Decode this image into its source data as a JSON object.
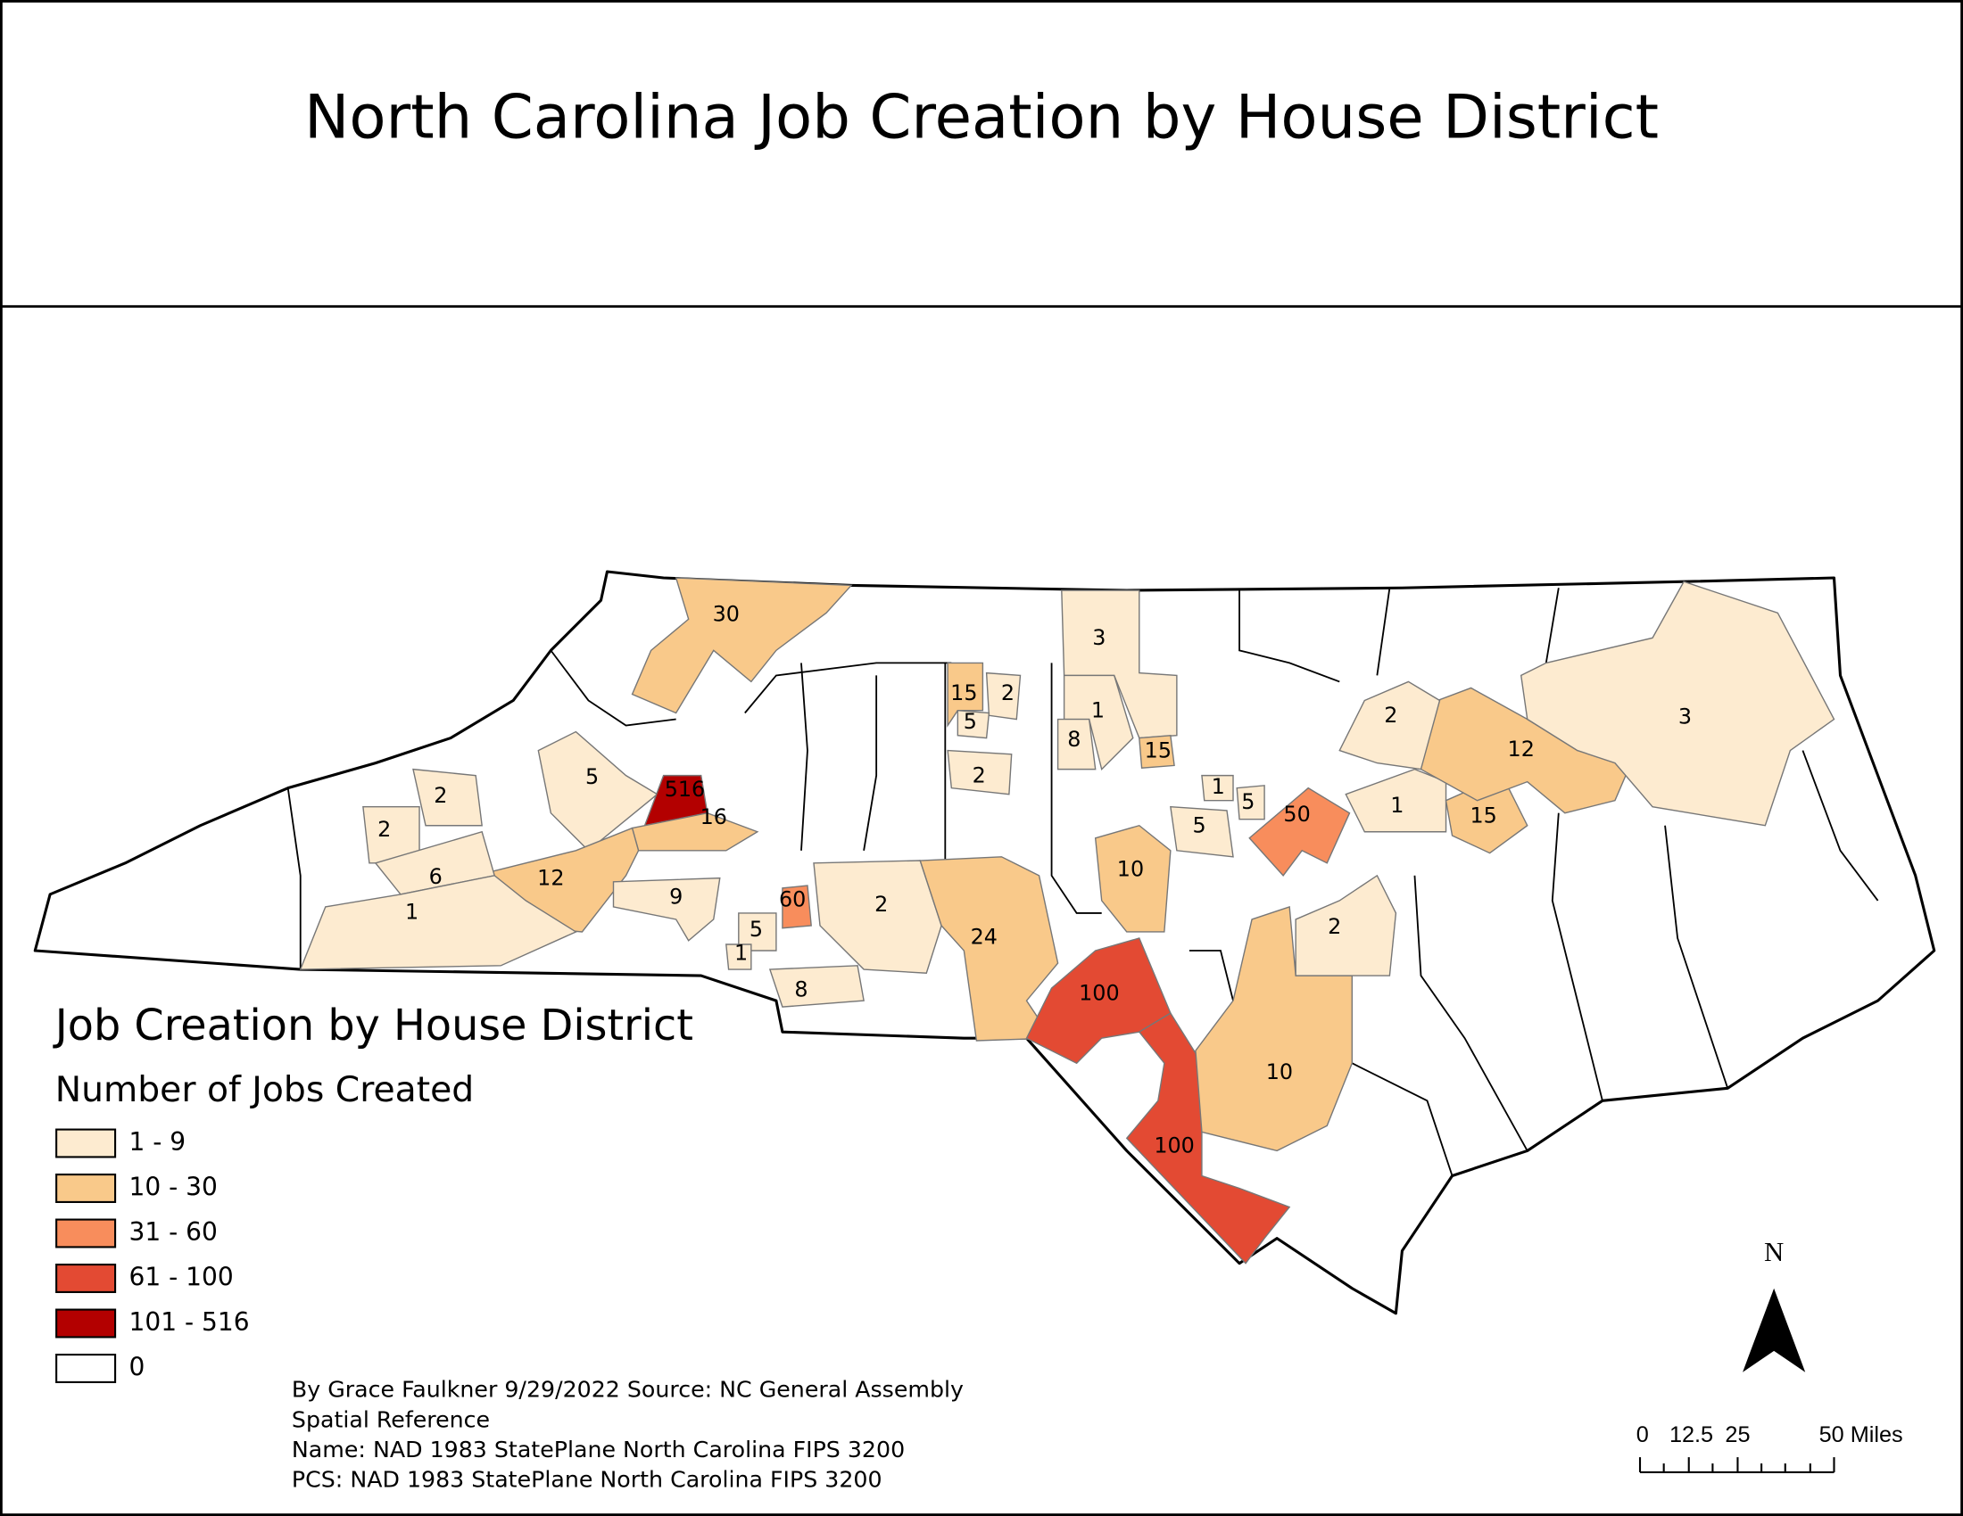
{
  "title": "North Carolina Job Creation by House District",
  "legend": {
    "title": "Job Creation by House District",
    "subtitle": "Number of Jobs Created",
    "classes": [
      {
        "label": "1 - 9",
        "color": "#fdebd0"
      },
      {
        "label": "10 - 30",
        "color": "#f9c98a"
      },
      {
        "label": "31 - 60",
        "color": "#f88d5c"
      },
      {
        "label": "61 - 100",
        "color": "#e34a33"
      },
      {
        "label": "101 - 516",
        "color": "#b30000"
      },
      {
        "label": "0",
        "color": "#ffffff"
      }
    ]
  },
  "districts": [
    {
      "label": "30",
      "color": "#f9c98a"
    },
    {
      "label": "3",
      "color": "#fdebd0"
    },
    {
      "label": "1",
      "color": "#fdebd0"
    },
    {
      "label": "8",
      "color": "#fdebd0"
    },
    {
      "label": "15",
      "color": "#f9c98a"
    },
    {
      "label": "15",
      "color": "#f9c98a"
    },
    {
      "label": "2",
      "color": "#fdebd0"
    },
    {
      "label": "5",
      "color": "#fdebd0"
    },
    {
      "label": "2",
      "color": "#fdebd0"
    },
    {
      "label": "5",
      "color": "#fdebd0"
    },
    {
      "label": "516",
      "color": "#b30000"
    },
    {
      "label": "16",
      "color": "#f9c98a"
    },
    {
      "label": "12",
      "color": "#f9c98a"
    },
    {
      "label": "2",
      "color": "#fdebd0"
    },
    {
      "label": "2",
      "color": "#fdebd0"
    },
    {
      "label": "6",
      "color": "#fdebd0"
    },
    {
      "label": "1",
      "color": "#fdebd0"
    },
    {
      "label": "9",
      "color": "#fdebd0"
    },
    {
      "label": "60",
      "color": "#f88d5c"
    },
    {
      "label": "5",
      "color": "#fdebd0"
    },
    {
      "label": "1",
      "color": "#fdebd0"
    },
    {
      "label": "8",
      "color": "#fdebd0"
    },
    {
      "label": "2",
      "color": "#fdebd0"
    },
    {
      "label": "24",
      "color": "#f9c98a"
    },
    {
      "label": "10",
      "color": "#f9c98a"
    },
    {
      "label": "100",
      "color": "#e34a33"
    },
    {
      "label": "100",
      "color": "#e34a33"
    },
    {
      "label": "10",
      "color": "#f9c98a"
    },
    {
      "label": "2",
      "color": "#fdebd0"
    },
    {
      "label": "50",
      "color": "#f88d5c"
    },
    {
      "label": "5",
      "color": "#fdebd0"
    },
    {
      "label": "1",
      "color": "#fdebd0"
    },
    {
      "label": "5",
      "color": "#fdebd0"
    },
    {
      "label": "1",
      "color": "#fdebd0"
    },
    {
      "label": "15",
      "color": "#f9c98a"
    },
    {
      "label": "12",
      "color": "#f9c98a"
    },
    {
      "label": "2",
      "color": "#fdebd0"
    },
    {
      "label": "3",
      "color": "#fdebd0"
    }
  ],
  "credits": [
    "By Grace Faulkner  9/29/2022 Source: NC General Assembly",
    "Spatial Reference",
    "Name: NAD 1983 StatePlane North Carolina FIPS 3200",
    "PCS: NAD 1983 StatePlane North Carolina FIPS 3200"
  ],
  "north_arrow": "N",
  "scale_bar": [
    "0",
    "12.5",
    "25",
    "50 Miles"
  ]
}
